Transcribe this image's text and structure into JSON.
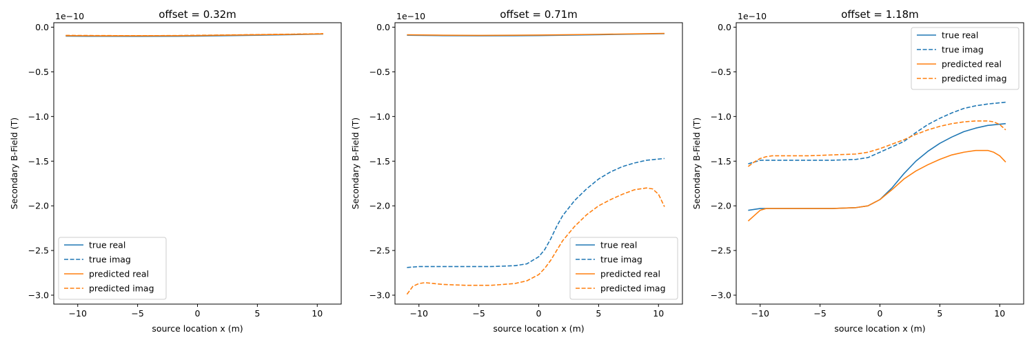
{
  "chart_data": [
    {
      "type": "line",
      "title": "offset = 0.32m",
      "xlabel": "source location x (m)",
      "ylabel": "Secondary B-Field (T)",
      "y_offset_text": "1e−10",
      "xlim": [
        -12,
        12
      ],
      "ylim": [
        -3.1,
        0.05
      ],
      "xticks": [
        -10,
        -5,
        0,
        5,
        10
      ],
      "xtick_labels": [
        "−10",
        "−5",
        "0",
        "5",
        "10"
      ],
      "yticks": [
        0.0,
        -0.5,
        -1.0,
        -1.5,
        -2.0,
        -2.5,
        -3.0
      ],
      "ytick_labels": [
        "0.0",
        "−0.5",
        "−1.0",
        "−1.5",
        "−2.0",
        "−2.5",
        "−3.0"
      ],
      "grid": false,
      "legend_position": "lower left",
      "series": [
        {
          "name": "true real",
          "color": "#1f77b4",
          "style": "solid",
          "x": [
            -11,
            -8,
            -5,
            -2,
            0,
            2,
            5,
            8,
            10.5
          ],
          "y": [
            -0.1,
            -0.102,
            -0.103,
            -0.102,
            -0.1,
            -0.096,
            -0.09,
            -0.083,
            -0.077
          ]
        },
        {
          "name": "true imag",
          "color": "#1f77b4",
          "style": "dashed",
          "x": [
            -11,
            -8,
            -5,
            -2,
            0,
            2,
            5,
            8,
            10.5
          ],
          "y": [
            -0.095,
            -0.096,
            -0.096,
            -0.095,
            -0.093,
            -0.09,
            -0.085,
            -0.079,
            -0.074
          ]
        },
        {
          "name": "predicted real",
          "color": "#ff7f0e",
          "style": "solid",
          "x": [
            -11,
            -8,
            -5,
            -2,
            0,
            2,
            5,
            8,
            10.5
          ],
          "y": [
            -0.095,
            -0.097,
            -0.097,
            -0.096,
            -0.094,
            -0.09,
            -0.085,
            -0.08,
            -0.075
          ]
        },
        {
          "name": "predicted imag",
          "color": "#ff7f0e",
          "style": "dashed",
          "x": [
            -11,
            -8,
            -5,
            -2,
            0,
            2,
            5,
            8,
            10.5
          ],
          "y": [
            -0.092,
            -0.094,
            -0.095,
            -0.094,
            -0.091,
            -0.088,
            -0.083,
            -0.078,
            -0.073
          ]
        }
      ]
    },
    {
      "type": "line",
      "title": "offset = 0.71m",
      "xlabel": "source location x (m)",
      "ylabel": "Secondary B-Field (T)",
      "y_offset_text": "1e−10",
      "xlim": [
        -12,
        12
      ],
      "ylim": [
        -3.1,
        0.05
      ],
      "xticks": [
        -10,
        -5,
        0,
        5,
        10
      ],
      "xtick_labels": [
        "−10",
        "−5",
        "0",
        "5",
        "10"
      ],
      "yticks": [
        0.0,
        -0.5,
        -1.0,
        -1.5,
        -2.0,
        -2.5,
        -3.0
      ],
      "ytick_labels": [
        "0.0",
        "−0.5",
        "−1.0",
        "−1.5",
        "−2.0",
        "−2.5",
        "−3.0"
      ],
      "grid": false,
      "legend_position": "lower right",
      "series": [
        {
          "name": "true real",
          "color": "#1f77b4",
          "style": "solid",
          "x": [
            -11,
            -8,
            -5,
            -2,
            0,
            2,
            5,
            8,
            10.5
          ],
          "y": [
            -0.09,
            -0.095,
            -0.097,
            -0.096,
            -0.094,
            -0.09,
            -0.084,
            -0.078,
            -0.073
          ]
        },
        {
          "name": "true imag",
          "color": "#1f77b4",
          "style": "dashed",
          "x": [
            -11,
            -10,
            -8,
            -6,
            -4,
            -2,
            -1,
            0,
            0.5,
            1,
            1.5,
            2,
            3,
            4,
            5,
            6,
            7,
            8,
            9,
            10.5
          ],
          "y": [
            -2.69,
            -2.68,
            -2.68,
            -2.68,
            -2.68,
            -2.67,
            -2.65,
            -2.57,
            -2.49,
            -2.37,
            -2.23,
            -2.11,
            -1.94,
            -1.81,
            -1.7,
            -1.62,
            -1.56,
            -1.52,
            -1.49,
            -1.47
          ]
        },
        {
          "name": "predicted real",
          "color": "#ff7f0e",
          "style": "solid",
          "x": [
            -11,
            -8,
            -5,
            -2,
            0,
            2,
            5,
            8,
            10.5
          ],
          "y": [
            -0.085,
            -0.09,
            -0.092,
            -0.09,
            -0.088,
            -0.085,
            -0.08,
            -0.075,
            -0.07
          ]
        },
        {
          "name": "predicted imag",
          "color": "#ff7f0e",
          "style": "dashed",
          "x": [
            -11,
            -10.5,
            -10,
            -9.5,
            -8,
            -6,
            -4,
            -2,
            -1,
            0,
            0.5,
            1,
            1.5,
            2,
            3,
            4,
            5,
            6,
            7,
            8,
            9,
            9.5,
            10,
            10.5
          ],
          "y": [
            -2.99,
            -2.9,
            -2.87,
            -2.86,
            -2.88,
            -2.89,
            -2.89,
            -2.87,
            -2.84,
            -2.77,
            -2.7,
            -2.61,
            -2.5,
            -2.39,
            -2.23,
            -2.1,
            -2.0,
            -1.93,
            -1.87,
            -1.82,
            -1.8,
            -1.81,
            -1.87,
            -2.01
          ]
        }
      ]
    },
    {
      "type": "line",
      "title": "offset = 1.18m",
      "xlabel": "source location x (m)",
      "ylabel": "Secondary B-Field (T)",
      "y_offset_text": "1e−10",
      "xlim": [
        -12,
        12
      ],
      "ylim": [
        -3.1,
        0.05
      ],
      "xticks": [
        -10,
        -5,
        0,
        5,
        10
      ],
      "xtick_labels": [
        "−10",
        "−5",
        "0",
        "5",
        "10"
      ],
      "yticks": [
        0.0,
        -0.5,
        -1.0,
        -1.5,
        -2.0,
        -2.5,
        -3.0
      ],
      "ytick_labels": [
        "0.0",
        "−0.5",
        "−1.0",
        "−1.5",
        "−2.0",
        "−2.5",
        "−3.0"
      ],
      "grid": false,
      "legend_position": "upper right",
      "series": [
        {
          "name": "true real",
          "color": "#1f77b4",
          "style": "solid",
          "x": [
            -11,
            -10,
            -8,
            -6,
            -4,
            -2,
            -1,
            0,
            1,
            2,
            3,
            4,
            5,
            6,
            7,
            8,
            9,
            10.5
          ],
          "y": [
            -2.05,
            -2.03,
            -2.03,
            -2.03,
            -2.03,
            -2.02,
            -2.0,
            -1.93,
            -1.8,
            -1.64,
            -1.5,
            -1.39,
            -1.3,
            -1.23,
            -1.17,
            -1.13,
            -1.1,
            -1.08
          ]
        },
        {
          "name": "true imag",
          "color": "#1f77b4",
          "style": "dashed",
          "x": [
            -11,
            -10,
            -8,
            -6,
            -4,
            -2,
            -1,
            0,
            1,
            2,
            3,
            4,
            5,
            6,
            7,
            8,
            9,
            10.5
          ],
          "y": [
            -1.53,
            -1.49,
            -1.49,
            -1.49,
            -1.49,
            -1.48,
            -1.46,
            -1.4,
            -1.34,
            -1.28,
            -1.18,
            -1.09,
            -1.02,
            -0.96,
            -0.91,
            -0.88,
            -0.86,
            -0.84
          ]
        },
        {
          "name": "predicted real",
          "color": "#ff7f0e",
          "style": "solid",
          "x": [
            -11,
            -10.5,
            -10,
            -9.5,
            -9,
            -8,
            -6,
            -4,
            -2,
            -1,
            0,
            1,
            2,
            3,
            4,
            5,
            6,
            7,
            8,
            9,
            9.5,
            10,
            10.5
          ],
          "y": [
            -2.17,
            -2.11,
            -2.05,
            -2.03,
            -2.03,
            -2.03,
            -2.03,
            -2.03,
            -2.02,
            -2.0,
            -1.93,
            -1.82,
            -1.7,
            -1.61,
            -1.54,
            -1.48,
            -1.43,
            -1.4,
            -1.38,
            -1.38,
            -1.4,
            -1.44,
            -1.51
          ]
        },
        {
          "name": "predicted imag",
          "color": "#ff7f0e",
          "style": "dashed",
          "x": [
            -11,
            -10.5,
            -10,
            -9.5,
            -9,
            -8,
            -6,
            -4,
            -2,
            -1,
            0,
            1,
            2,
            3,
            4,
            5,
            6,
            7,
            8,
            9,
            9.5,
            10,
            10.5
          ],
          "y": [
            -1.56,
            -1.51,
            -1.47,
            -1.45,
            -1.44,
            -1.44,
            -1.44,
            -1.43,
            -1.42,
            -1.4,
            -1.36,
            -1.31,
            -1.26,
            -1.2,
            -1.15,
            -1.11,
            -1.08,
            -1.06,
            -1.05,
            -1.05,
            -1.06,
            -1.09,
            -1.15
          ]
        }
      ]
    }
  ]
}
